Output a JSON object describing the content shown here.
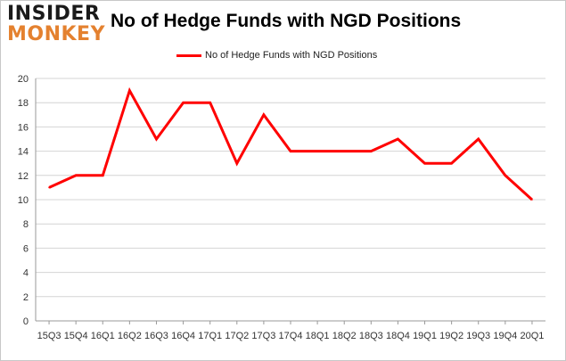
{
  "brand": {
    "line1": "INSIDER",
    "line2": "MONKEY"
  },
  "colors": {
    "series": "#ff0000",
    "grid": "#d4d4d4",
    "axis": "#999999",
    "logo_accent": "#e4812f"
  },
  "chart_data": {
    "type": "line",
    "title": "No of Hedge Funds with NGD Positions",
    "xlabel": "",
    "ylabel": "",
    "ylim": [
      0,
      20
    ],
    "yticks": [
      0,
      2,
      4,
      6,
      8,
      10,
      12,
      14,
      16,
      18,
      20
    ],
    "grid": true,
    "legend_position": "top-center",
    "categories": [
      "15Q3",
      "15Q4",
      "16Q1",
      "16Q2",
      "16Q3",
      "16Q4",
      "17Q1",
      "17Q2",
      "17Q3",
      "17Q4",
      "18Q1",
      "18Q2",
      "18Q3",
      "18Q4",
      "19Q1",
      "19Q2",
      "19Q3",
      "19Q4",
      "20Q1"
    ],
    "series": [
      {
        "name": "No of Hedge Funds with NGD Positions",
        "values": [
          11,
          12,
          12,
          19,
          15,
          18,
          18,
          13,
          17,
          14,
          14,
          14,
          14,
          15,
          13,
          13,
          15,
          12,
          10
        ]
      }
    ]
  }
}
